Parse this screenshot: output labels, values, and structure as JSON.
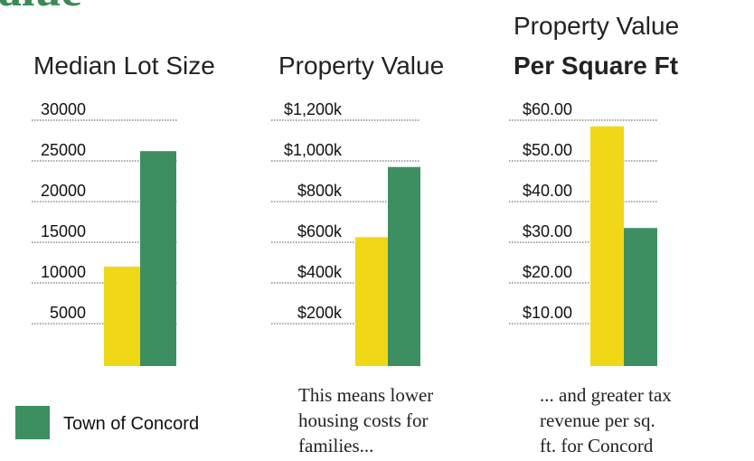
{
  "header": {
    "title": "alue"
  },
  "chart_data": [
    {
      "type": "bar",
      "title": "Median Lot Size",
      "categories": [
        null
      ],
      "series": [
        {
          "color": "#f0d817",
          "values": [
            12000
          ]
        },
        {
          "name": "Town of Concord",
          "color": "#3d8f62",
          "values": [
            26200
          ]
        }
      ],
      "ylim": [
        0,
        30000
      ],
      "yticks": [
        5000,
        10000,
        15000,
        20000,
        25000,
        30000
      ],
      "grid": true
    },
    {
      "type": "bar",
      "title": "Property Value",
      "categories": [
        null
      ],
      "series": [
        {
          "color": "#f0d817",
          "values": [
            625
          ]
        },
        {
          "color": "#3d8f62",
          "values": [
            970
          ]
        }
      ],
      "ylim": [
        0,
        1200
      ],
      "yticks": [
        {
          "value": 200,
          "label": "$200k"
        },
        {
          "value": 400,
          "label": "$400k"
        },
        {
          "value": 600,
          "label": "$600k"
        },
        {
          "value": 800,
          "label": "$800k"
        },
        {
          "value": 1000,
          "label": "$1,000k"
        },
        {
          "value": 1200,
          "label": "$1,200k"
        }
      ],
      "grid": true,
      "annotation": [
        "This means lower",
        "housing costs for",
        "families..."
      ]
    },
    {
      "type": "bar",
      "title": "Property Value",
      "subtitle": "Per Square Ft",
      "categories": [
        null
      ],
      "series": [
        {
          "color": "#f0d817",
          "values": [
            58.5
          ]
        },
        {
          "color": "#3d8f62",
          "values": [
            33.5
          ]
        }
      ],
      "ylim": [
        0,
        60
      ],
      "yticks": [
        {
          "value": 10,
          "label": "$10.00"
        },
        {
          "value": 20,
          "label": "$20.00"
        },
        {
          "value": 30,
          "label": "$30.00"
        },
        {
          "value": 40,
          "label": "$40.00"
        },
        {
          "value": 50,
          "label": "$50.00"
        },
        {
          "value": 60,
          "label": "$60.00"
        }
      ],
      "grid": true,
      "annotation": [
        "... and greater tax",
        "revenue per sq.",
        "ft. for Concord"
      ]
    }
  ]
}
